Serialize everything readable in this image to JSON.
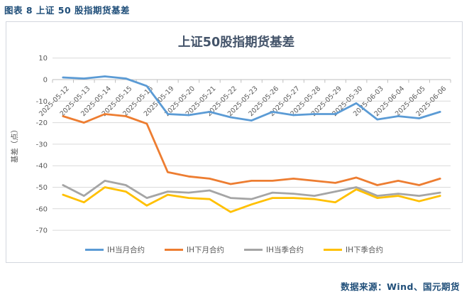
{
  "page": {
    "caption": "图表 8 上证 50 股指期货基差",
    "source": "数据来源：Wind、国元期货"
  },
  "colors": {
    "caption_text": "#1F4E79",
    "source_text": "#1F4E79",
    "title_text": "#44546A",
    "axis_text": "#595959",
    "gridline": "#D9D9D9",
    "axis_line": "#BFBFBF",
    "chart_border": "#D3D7DE"
  },
  "chart_data": {
    "type": "line",
    "title": "上证50股指期货基差",
    "xlabel": "",
    "ylabel": "基差（点）",
    "ylim": [
      -70,
      10
    ],
    "ytick_step": 10,
    "grid": true,
    "legend_position": "bottom",
    "categories": [
      "2025-05-12",
      "2025-05-13",
      "2025-05-14",
      "2025-05-15",
      "2025-05-16",
      "2025-05-19",
      "2025-05-20",
      "2025-05-21",
      "2025-05-22",
      "2025-05-23",
      "2025-05-26",
      "2025-05-27",
      "2025-05-28",
      "2025-05-29",
      "2025-05-30",
      "2025-06-03",
      "2025-06-04",
      "2025-06-05",
      "2025-06-06"
    ],
    "series": [
      {
        "name": "IH当月合约",
        "color": "#5B9BD5",
        "values": [
          1,
          0.5,
          1.5,
          0.5,
          -3,
          -16,
          -16.5,
          -15,
          -17.5,
          -19,
          -15,
          -16.5,
          -16,
          -16,
          -11,
          -18.5,
          -17,
          -18,
          -15
        ]
      },
      {
        "name": "IH下月合约",
        "color": "#ED7D31",
        "values": [
          -17,
          -20,
          -16,
          -17,
          -20.5,
          -43,
          -45,
          -46,
          -48.5,
          -47,
          -47,
          -46,
          -47,
          -48,
          -45.5,
          -49,
          -47,
          -49,
          -46
        ]
      },
      {
        "name": "IH当季合约",
        "color": "#A5A5A5",
        "values": [
          -49,
          -54,
          -47,
          -49,
          -55,
          -52,
          -52.5,
          -51.5,
          -55,
          -55.5,
          -52.5,
          -53,
          -54,
          -52,
          -50,
          -54,
          -53,
          -54,
          -52.5
        ]
      },
      {
        "name": "IH下季合约",
        "color": "#FFC000",
        "values": [
          -53.5,
          -57,
          -50,
          -52,
          -58.5,
          -53.5,
          -55,
          -55.5,
          -61.5,
          -58,
          -55,
          -55,
          -55.5,
          -57,
          -51,
          -55,
          -54,
          -56.5,
          -54
        ]
      }
    ]
  }
}
